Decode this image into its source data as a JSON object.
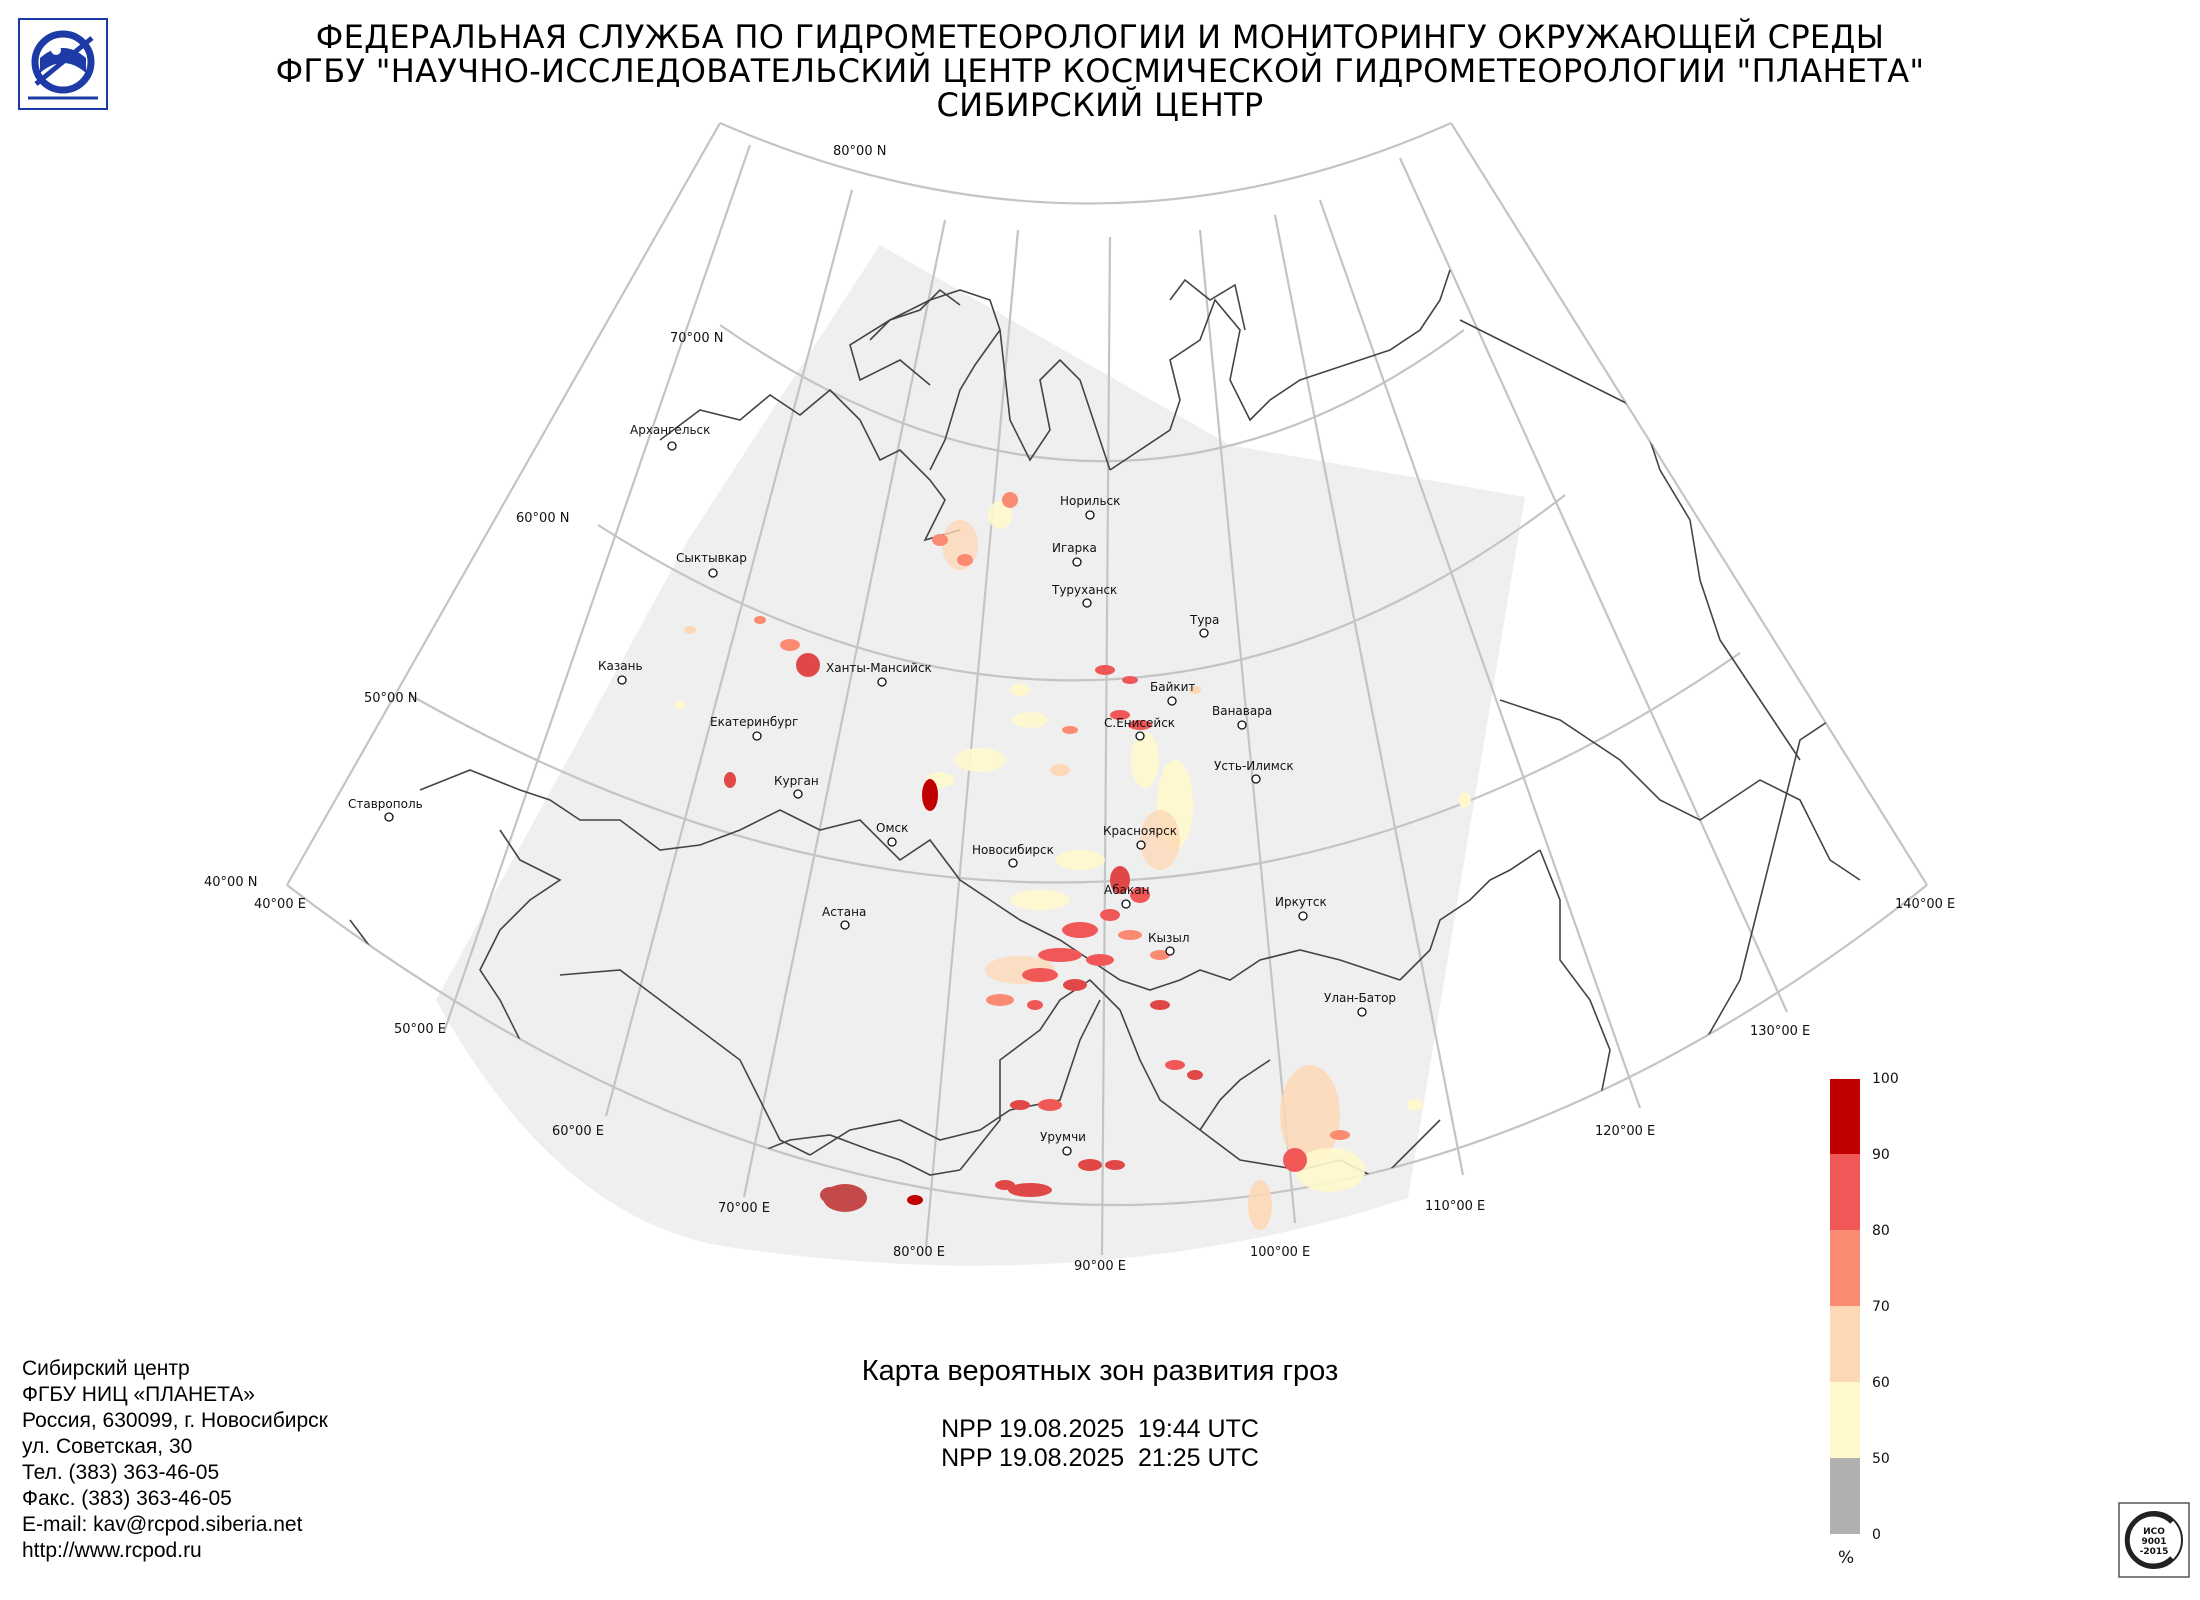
{
  "header": {
    "line1": "ФЕДЕРАЛЬНАЯ СЛУЖБА ПО ГИДРОМЕТЕОРОЛОГИИ И МОНИТОРИНГУ ОКРУЖАЮЩЕЙ СРЕДЫ",
    "line2": "ФГБУ \"НАУЧНО-ИССЛЕДОВАТЕЛЬСКИЙ ЦЕНТР КОСМИЧЕСКОЙ ГИДРОМЕТЕОРОЛОГИИ \"ПЛАНЕТА\"",
    "line3": "СИБИРСКИЙ ЦЕНТР"
  },
  "map": {
    "lat_labels": [
      "80°00 N",
      "70°00 N",
      "60°00 N",
      "50°00 N",
      "40°00 N"
    ],
    "lon_labels": [
      "40°00 E",
      "50°00 E",
      "60°00 E",
      "70°00 E",
      "80°00 E",
      "90°00 E",
      "100°00 E",
      "110°00 E",
      "120°00 E",
      "130°00 E",
      "140°00 E"
    ],
    "cities": [
      "Архангельск",
      "Норильск",
      "Игарка",
      "Туруханск",
      "Сыктывкар",
      "Тура",
      "Казань",
      "Ханты-Мансийск",
      "Байкит",
      "Ванавара",
      "Екатеринбург",
      "С.Енисейск",
      "Усть-Илимск",
      "Курган",
      "Ставрополь",
      "Омск",
      "Новосибирск",
      "Красноярск",
      "Абакан",
      "Иркутск",
      "Астана",
      "Кызыл",
      "Улан-Батор",
      "Урумчи"
    ]
  },
  "legend": {
    "ticks": [
      "100",
      "90",
      "80",
      "70",
      "60",
      "50",
      "0"
    ],
    "unit": "%",
    "colors": [
      "#c00000",
      "#f05858",
      "#fb8a72",
      "#fdd8b6",
      "#fff8cc",
      "#b0b0b0"
    ]
  },
  "contacts": {
    "lines": [
      "Сибирский центр",
      "ФГБУ НИЦ «ПЛАНЕТА»",
      "Россия, 630099, г. Новосибирск",
      "ул. Советская, 30",
      "Тел. (383) 363-46-05",
      "Факс. (383) 363-46-05",
      "E-mail: kav@rcpod.siberia.net",
      "http://www.rcpod.ru"
    ]
  },
  "map_title": "Карта вероятных зон развития гроз",
  "passes": [
    "NPP 19.08.2025  19:44 UTC",
    "NPP 19.08.2025  21:25 UTC"
  ],
  "certificate": {
    "text_lines": [
      "ИСО",
      "9001",
      "-2015"
    ]
  }
}
